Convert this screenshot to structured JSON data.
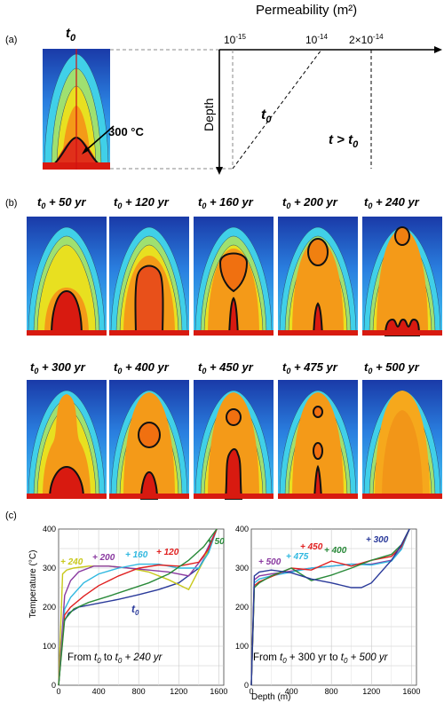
{
  "panel_a": {
    "label": "(a)",
    "t0": "t0",
    "isotherm_label": "300 °C",
    "permeability_title": "Permeability (m²)",
    "tick_low": "10-15",
    "tick_mid": "10-14",
    "tick_high": "2×10-14",
    "depth_label": "Depth",
    "profile_t0": "t0",
    "profile_later": "t > t0"
  },
  "panel_b": {
    "label": "(b)",
    "snapshots_top": [
      "t0 + 50 yr",
      "t0 + 120 yr",
      "t0 + 160 yr",
      "t0 + 200 yr",
      "t0 + 240 yr"
    ],
    "snapshots_bottom": [
      "t0 + 300 yr",
      "t0 + 400 yr",
      "t0 + 450 yr",
      "t0 + 475 yr",
      "t0 + 500 yr"
    ]
  },
  "panel_c": {
    "label": "(c)",
    "ylabel": "Temperature (°C)",
    "xlabel": "Depth (m)",
    "left_note": "From t0 to t0 + 240 yr",
    "right_note": "From t0 + 300 yr to t0 + 500 yr"
  },
  "colors": {
    "deep_blue": "#1a3aa8",
    "cyan": "#40c8f0",
    "yellow": "#f2e21a",
    "orange": "#f59a18",
    "red": "#d81a10"
  },
  "chart_data": [
    {
      "type": "line",
      "xlabel": "Depth (m)",
      "ylabel": "Temperature (°C)",
      "xlim": [
        0,
        1650
      ],
      "ylim": [
        0,
        400
      ],
      "xticks": [
        0,
        400,
        800,
        1200,
        1600
      ],
      "yticks": [
        0,
        50,
        100,
        150,
        200,
        250,
        300,
        350,
        400
      ],
      "grid": true,
      "series": [
        {
          "name": "t0",
          "color": "#2a3a9a",
          "x": [
            0,
            50,
            100,
            200,
            400,
            600,
            800,
            1000,
            1200,
            1400,
            1500,
            1580
          ],
          "y": [
            0,
            160,
            185,
            200,
            210,
            220,
            232,
            245,
            262,
            300,
            345,
            400
          ]
        },
        {
          "name": "+ 240",
          "color": "#c8c81a",
          "x": [
            0,
            40,
            80,
            150,
            300,
            500,
            700,
            900,
            1100,
            1300,
            1450,
            1580
          ],
          "y": [
            0,
            285,
            295,
            300,
            305,
            305,
            300,
            290,
            270,
            245,
            320,
            400
          ]
        },
        {
          "name": "+ 200",
          "color": "#8a3aa0",
          "x": [
            0,
            60,
            120,
            200,
            350,
            500,
            700,
            900,
            1100,
            1300,
            1450,
            1580
          ],
          "y": [
            0,
            230,
            268,
            290,
            305,
            305,
            300,
            295,
            290,
            280,
            330,
            400
          ]
        },
        {
          "name": "+ 160",
          "color": "#30b8e0",
          "x": [
            0,
            60,
            120,
            250,
            400,
            600,
            800,
            1000,
            1200,
            1400,
            1500,
            1580
          ],
          "y": [
            0,
            195,
            225,
            262,
            285,
            300,
            310,
            310,
            300,
            300,
            340,
            400
          ]
        },
        {
          "name": "+ 120",
          "color": "#e02020",
          "x": [
            0,
            60,
            120,
            250,
            400,
            600,
            800,
            1000,
            1200,
            1400,
            1500,
            1580
          ],
          "y": [
            0,
            180,
            200,
            228,
            255,
            280,
            300,
            308,
            305,
            315,
            350,
            400
          ]
        },
        {
          "name": "+ 50",
          "color": "#2a8a3a",
          "x": [
            0,
            60,
            150,
            300,
            500,
            700,
            900,
            1100,
            1300,
            1450,
            1580
          ],
          "y": [
            0,
            168,
            195,
            212,
            228,
            245,
            262,
            285,
            320,
            355,
            400
          ]
        }
      ]
    },
    {
      "type": "line",
      "xlabel": "Depth (m)",
      "ylabel": "Temperature (°C)",
      "xlim": [
        0,
        1650
      ],
      "ylim": [
        0,
        400
      ],
      "xticks": [
        0,
        400,
        800,
        1200,
        1600
      ],
      "yticks": [
        0,
        50,
        100,
        150,
        200,
        250,
        300,
        350,
        400
      ],
      "grid": true,
      "series": [
        {
          "name": "+ 500",
          "color": "#8a3aa0",
          "x": [
            0,
            30,
            80,
            200,
            400,
            600,
            800,
            1000,
            1200,
            1400,
            1500,
            1580
          ],
          "y": [
            0,
            270,
            280,
            285,
            292,
            300,
            305,
            310,
            310,
            320,
            350,
            400
          ]
        },
        {
          "name": "+ 475",
          "color": "#30b8e0",
          "x": [
            0,
            30,
            80,
            200,
            400,
            600,
            800,
            1000,
            1200,
            1400,
            1500,
            1580
          ],
          "y": [
            0,
            262,
            272,
            280,
            290,
            300,
            305,
            310,
            308,
            318,
            348,
            400
          ]
        },
        {
          "name": "+ 450",
          "color": "#e02020",
          "x": [
            0,
            30,
            80,
            200,
            400,
            600,
            800,
            1000,
            1200,
            1400,
            1500,
            1580
          ],
          "y": [
            0,
            255,
            265,
            278,
            300,
            295,
            318,
            305,
            320,
            330,
            355,
            400
          ]
        },
        {
          "name": "+ 400",
          "color": "#2a8a3a",
          "x": [
            0,
            30,
            80,
            200,
            400,
            600,
            800,
            1000,
            1200,
            1400,
            1500,
            1580
          ],
          "y": [
            0,
            250,
            262,
            280,
            300,
            268,
            282,
            300,
            320,
            335,
            360,
            400
          ]
        },
        {
          "name": "+ 300",
          "color": "#2a3a9a",
          "x": [
            0,
            30,
            80,
            200,
            400,
            600,
            800,
            1000,
            1100,
            1200,
            1400,
            1500,
            1580
          ],
          "y": [
            0,
            280,
            290,
            295,
            288,
            272,
            262,
            250,
            250,
            262,
            320,
            360,
            400
          ]
        }
      ]
    }
  ]
}
